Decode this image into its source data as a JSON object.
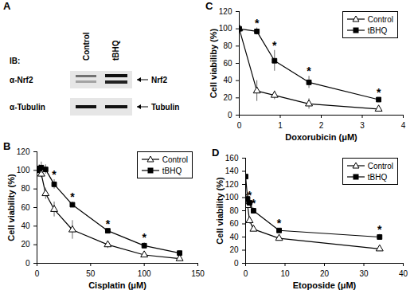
{
  "blot": {
    "panel": "A",
    "prefix": "IB:",
    "lanes": [
      "Control",
      "tBHQ"
    ],
    "rows": [
      {
        "antibody": "α-Nrf2",
        "target": "Nrf2"
      },
      {
        "antibody": "α-Tubulin",
        "target": "Tubulin"
      }
    ]
  },
  "chart_data": [
    {
      "type": "line",
      "panel": "B",
      "x_label": "Cisplatin (μM)",
      "y_label": "Cell viability (%)",
      "x": [
        0,
        2,
        4,
        8,
        16,
        33,
        66,
        100,
        133
      ],
      "xlim": [
        0,
        150
      ],
      "xticks": [
        0,
        50,
        100,
        150
      ],
      "ylim": [
        0,
        120
      ],
      "yticks": [
        0,
        20,
        40,
        60,
        80,
        100,
        120
      ],
      "legend": "top-right",
      "significance_label": "*",
      "series": [
        {
          "name": "Control",
          "color": "#000000",
          "marker": "open-triangle",
          "line_style": "solid",
          "values": [
            100,
            100,
            96,
            75,
            58,
            36,
            20,
            9,
            5
          ],
          "errors": [
            2,
            3,
            4,
            6,
            8,
            10,
            4,
            3,
            2
          ],
          "significant": [
            false,
            false,
            false,
            false,
            false,
            false,
            false,
            false,
            false
          ]
        },
        {
          "name": "tBHQ",
          "color": "#000000",
          "marker": "filled-square",
          "line_style": "solid",
          "values": [
            100,
            102,
            103,
            101,
            85,
            63,
            35,
            19,
            11
          ],
          "errors": [
            2,
            4,
            6,
            5,
            5,
            3,
            2,
            3,
            2
          ],
          "significant": [
            false,
            false,
            false,
            false,
            true,
            true,
            true,
            true,
            false
          ]
        }
      ]
    },
    {
      "type": "line",
      "panel": "C",
      "x_label": "Doxorubicin (μM)",
      "y_label": "Cell viabiliby (%)",
      "x": [
        0,
        0.43,
        0.86,
        1.7,
        3.4
      ],
      "xlim": [
        0,
        4
      ],
      "xticks": [
        0,
        1,
        2,
        3,
        4
      ],
      "ylim": [
        0,
        120
      ],
      "yticks": [
        0,
        20,
        40,
        60,
        80,
        100,
        120
      ],
      "legend": "top-right",
      "significance_label": "*",
      "series": [
        {
          "name": "Control",
          "color": "#000000",
          "marker": "open-triangle",
          "line_style": "solid",
          "values": [
            100,
            28,
            23,
            13,
            7
          ],
          "errors": [
            2,
            12,
            5,
            6,
            1
          ],
          "significant": [
            false,
            false,
            false,
            false,
            false
          ]
        },
        {
          "name": "tBHQ",
          "color": "#000000",
          "marker": "filled-square",
          "line_style": "solid",
          "values": [
            100,
            97,
            63,
            38,
            18
          ],
          "errors": [
            2,
            4,
            12,
            7,
            2
          ],
          "significant": [
            false,
            true,
            true,
            true,
            true
          ]
        }
      ]
    },
    {
      "type": "line",
      "panel": "D",
      "x_label": "Etoposide (μM)",
      "y_label": "Cell viability (%)",
      "x": [
        0,
        0.5,
        1,
        2,
        8.5,
        34
      ],
      "xlim": [
        0,
        40
      ],
      "xticks": [
        0,
        10,
        20,
        30,
        40
      ],
      "ylim": [
        0,
        160
      ],
      "yticks": [
        0,
        20,
        40,
        60,
        80,
        100,
        120,
        140,
        160
      ],
      "legend": "top-right",
      "significance_label": "*",
      "series": [
        {
          "name": "Control",
          "color": "#000000",
          "marker": "open-triangle",
          "line_style": "solid",
          "values": [
            100,
            88,
            65,
            52,
            38,
            22
          ],
          "errors": [
            3,
            4,
            5,
            3,
            2,
            2
          ],
          "significant": [
            false,
            false,
            false,
            false,
            false,
            false
          ]
        },
        {
          "name": "tBHQ",
          "color": "#000000",
          "marker": "filled-square",
          "line_style": "solid",
          "values": [
            132,
            98,
            92,
            80,
            50,
            40
          ],
          "errors": [
            8,
            5,
            4,
            4,
            3,
            4
          ],
          "significant": [
            false,
            false,
            true,
            true,
            true,
            true
          ]
        }
      ]
    }
  ]
}
